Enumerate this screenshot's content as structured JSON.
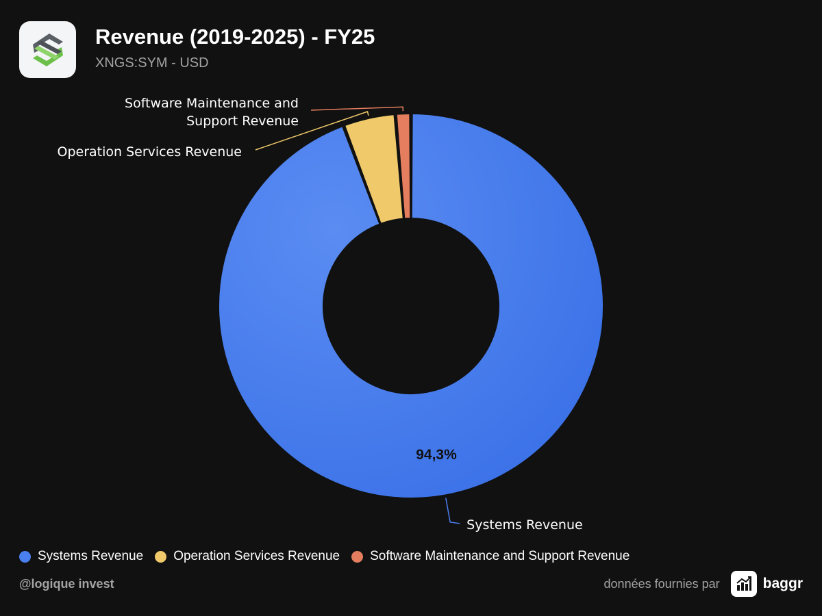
{
  "header": {
    "title": "Revenue (2019-2025) - FY25",
    "subtitle": "XNGS:SYM - USD",
    "logo_icon": "symbotic-logo-icon"
  },
  "chart_data": {
    "type": "pie",
    "donut": true,
    "categories": [
      "Systems Revenue",
      "Operation Services Revenue",
      "Software Maintenance and Support Revenue"
    ],
    "values": [
      94.3,
      4.4,
      1.3
    ],
    "colors": [
      "#4a7ff0",
      "#f0c96a",
      "#e47e5e"
    ],
    "data_labels": [
      "94,3%",
      "",
      ""
    ],
    "title": "Revenue (2019-2025) - FY25",
    "legend_position": "bottom-left"
  },
  "legend": {
    "items": [
      {
        "label": "Systems Revenue",
        "color": "#4a7ff0"
      },
      {
        "label": "Operation Services Revenue",
        "color": "#f0c96a"
      },
      {
        "label": "Software Maintenance and Support Revenue",
        "color": "#e47e5e"
      }
    ]
  },
  "footer": {
    "author": "@logique invest",
    "credit": "données fournies par",
    "brand": "baggr",
    "brand_icon": "bar-chart-trend-icon"
  }
}
